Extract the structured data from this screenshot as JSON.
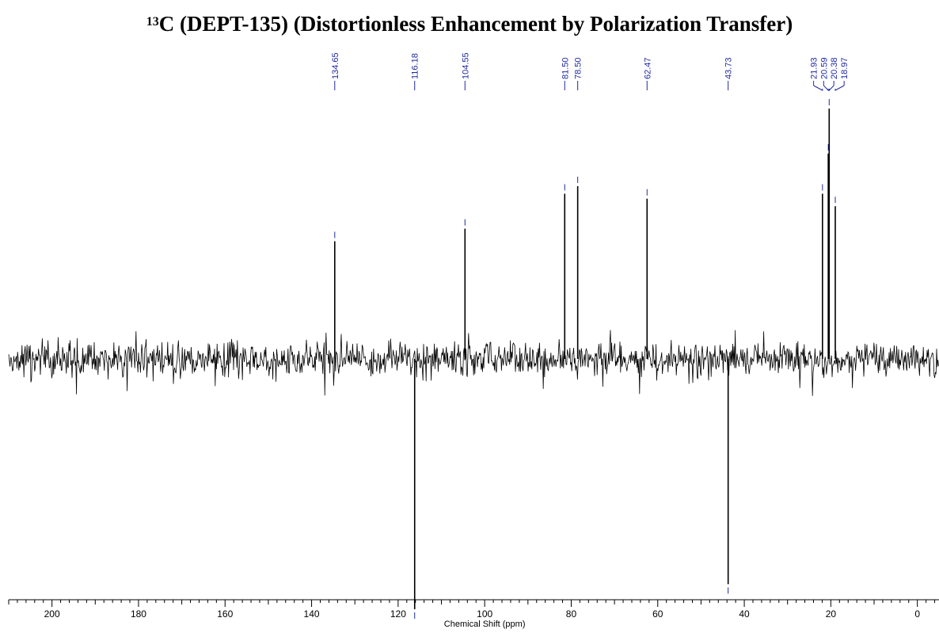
{
  "chart_data": {
    "type": "line",
    "title_superscript": "13",
    "title_main": "C (DEPT-135) (Distortionless Enhancement by Polarization Transfer)",
    "xlabel": "Chemical Shift (ppm)",
    "xlim": [
      210,
      -5
    ],
    "x_ticks": [
      200,
      180,
      160,
      140,
      120,
      100,
      80,
      60,
      40,
      20,
      0
    ],
    "x_minor_step": 2,
    "peaks": [
      {
        "ppm": 134.65,
        "label": "134.65",
        "intensity": 0.47
      },
      {
        "ppm": 116.18,
        "label": "116.18",
        "intensity": -1.0
      },
      {
        "ppm": 104.55,
        "label": "104.55",
        "intensity": 0.52
      },
      {
        "ppm": 81.5,
        "label": "81.50",
        "intensity": 0.66
      },
      {
        "ppm": 78.5,
        "label": "78.50",
        "intensity": 0.69
      },
      {
        "ppm": 62.47,
        "label": "62.47",
        "intensity": 0.64
      },
      {
        "ppm": 43.73,
        "label": "43.73",
        "intensity": -0.9
      },
      {
        "ppm": 21.93,
        "label": "21.93",
        "intensity": 0.66
      },
      {
        "ppm": 20.59,
        "label": "20.59",
        "intensity": 0.82
      },
      {
        "ppm": 20.38,
        "label": "20.38",
        "intensity": 1.0
      },
      {
        "ppm": 18.97,
        "label": "18.97",
        "intensity": 0.61
      }
    ],
    "colors": {
      "spectrum": "#000000",
      "peak_label": "#1f2aa0",
      "axis": "#000000"
    }
  }
}
